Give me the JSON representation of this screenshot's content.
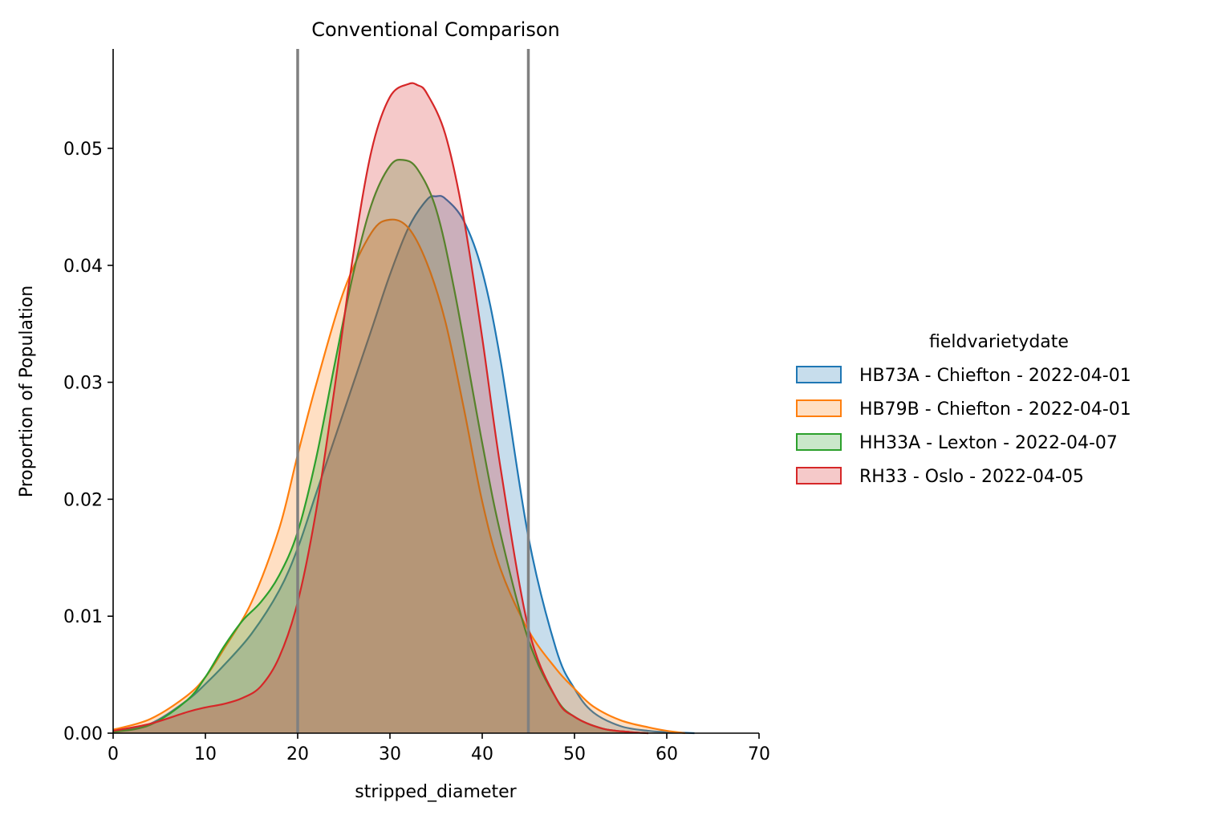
{
  "chart_data": {
    "type": "area",
    "title": "Conventional Comparison",
    "xlabel": "stripped_diameter",
    "ylabel": "Proportion of Population",
    "xlim": [
      0,
      70
    ],
    "ylim": [
      0,
      0.0585
    ],
    "x_ticks": [
      0,
      10,
      20,
      30,
      40,
      50,
      60,
      70
    ],
    "x_tick_labels": [
      "0",
      "10",
      "20",
      "30",
      "40",
      "50",
      "60",
      "70"
    ],
    "y_ticks": [
      0,
      0.01,
      0.02,
      0.03,
      0.04,
      0.05
    ],
    "y_tick_labels": [
      "0.00",
      "0.01",
      "0.02",
      "0.03",
      "0.04",
      "0.05"
    ],
    "grid": false,
    "legend": {
      "title": "fieldvarietydate",
      "placement": "right"
    },
    "reference_lines_x": [
      20,
      45
    ],
    "reference_line_color": "#808080",
    "series": [
      {
        "name": "HB73A - Chiefton - 2022-04-01",
        "color": "#1f77b4",
        "fill": "#1f77b4",
        "x": [
          0,
          4,
          8,
          10,
          12,
          15,
          18,
          20,
          22,
          25,
          28,
          30,
          32,
          34,
          35,
          36,
          38,
          40,
          42,
          45,
          48,
          50,
          52,
          55,
          58,
          60,
          63
        ],
        "y": [
          0.0002,
          0.0008,
          0.0028,
          0.0042,
          0.0058,
          0.0085,
          0.0122,
          0.0158,
          0.0205,
          0.0275,
          0.0345,
          0.0392,
          0.0432,
          0.0456,
          0.0459,
          0.0457,
          0.0438,
          0.0395,
          0.0318,
          0.0168,
          0.0072,
          0.0038,
          0.0018,
          0.0006,
          0.0002,
          0.0001,
          0.0
        ]
      },
      {
        "name": "HB79B - Chiefton - 2022-04-01",
        "color": "#ff7f0e",
        "fill": "#ff7f0e",
        "x": [
          0,
          4,
          8,
          10,
          12,
          15,
          18,
          20,
          22,
          25,
          28,
          30,
          32,
          34,
          36,
          38,
          40,
          42,
          45,
          48,
          50,
          52,
          55,
          58,
          60,
          62
        ],
        "y": [
          0.0003,
          0.0012,
          0.0032,
          0.0048,
          0.0072,
          0.0112,
          0.0175,
          0.0238,
          0.0298,
          0.0378,
          0.0428,
          0.0439,
          0.0432,
          0.0402,
          0.0352,
          0.0278,
          0.0198,
          0.014,
          0.0088,
          0.0055,
          0.0038,
          0.0023,
          0.0011,
          0.0005,
          0.0002,
          0.0
        ]
      },
      {
        "name": "HH33A - Lexton - 2022-04-07",
        "color": "#2ca02c",
        "fill": "#2ca02c",
        "x": [
          0,
          4,
          8,
          10,
          12,
          14,
          16,
          18,
          20,
          22,
          24,
          26,
          28,
          30,
          31.5,
          33,
          35,
          37,
          40,
          42,
          45,
          48,
          50,
          53,
          56,
          58
        ],
        "y": [
          0.0001,
          0.0007,
          0.0028,
          0.0048,
          0.0074,
          0.0096,
          0.0112,
          0.0135,
          0.0172,
          0.0235,
          0.0315,
          0.0392,
          0.0452,
          0.0485,
          0.049,
          0.0482,
          0.0448,
          0.0378,
          0.0248,
          0.017,
          0.008,
          0.003,
          0.0014,
          0.0004,
          0.0001,
          0.0
        ]
      },
      {
        "name": "RH33 - Oslo - 2022-04-05",
        "color": "#d62728",
        "fill": "#d62728",
        "x": [
          0,
          4,
          8,
          10,
          12,
          14,
          16,
          18,
          20,
          22,
          24,
          26,
          28,
          30,
          32,
          33,
          34,
          36,
          38,
          40,
          42,
          45,
          48,
          50,
          53,
          56,
          58
        ],
        "y": [
          0.0002,
          0.0008,
          0.0018,
          0.0022,
          0.0025,
          0.003,
          0.004,
          0.0065,
          0.0112,
          0.019,
          0.0295,
          0.0408,
          0.0498,
          0.0544,
          0.0555,
          0.0554,
          0.0547,
          0.0512,
          0.044,
          0.0338,
          0.0226,
          0.009,
          0.003,
          0.0014,
          0.0004,
          0.0001,
          0.0
        ]
      }
    ]
  }
}
